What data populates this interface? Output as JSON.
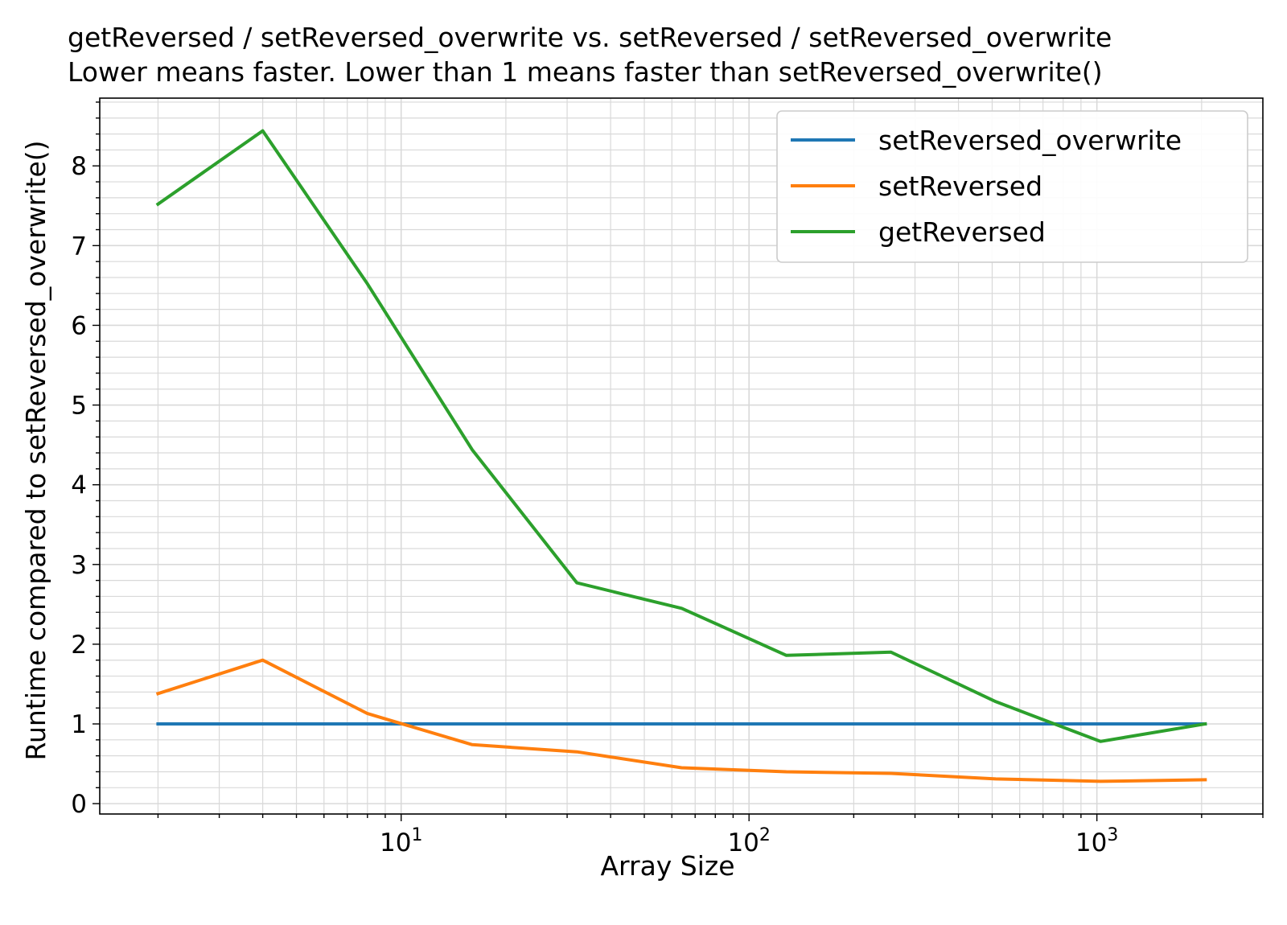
{
  "chart_data": {
    "type": "line",
    "title": "getReversed / setReversed_overwrite vs. setReversed / setReversed_overwrite",
    "subtitle": "Lower means faster. Lower than 1 means faster than setReversed_overwrite()",
    "xlabel": "Array Size",
    "ylabel": "Runtime compared to setReversed_overwrite()",
    "xscale": "log",
    "xlim": [
      1.36,
      3000
    ],
    "ylim": [
      -0.13,
      8.85
    ],
    "grid": "major and minor",
    "legend_position": "top-right",
    "x": [
      2,
      4,
      8,
      16,
      32,
      64,
      128,
      256,
      512,
      1024,
      2048
    ],
    "x_ticks": [
      {
        "value": 10,
        "base": "10",
        "exp": "1"
      },
      {
        "value": 100,
        "base": "10",
        "exp": "2"
      },
      {
        "value": 1000,
        "base": "10",
        "exp": "3"
      }
    ],
    "y_ticks": [
      0,
      1,
      2,
      3,
      4,
      5,
      6,
      7,
      8
    ],
    "series": [
      {
        "name": "setReversed_overwrite",
        "color": "#1f77b4",
        "values": [
          1,
          1,
          1,
          1,
          1,
          1,
          1,
          1,
          1,
          1,
          1
        ]
      },
      {
        "name": "setReversed",
        "color": "#ff7f0e",
        "values": [
          1.38,
          1.8,
          1.13,
          0.74,
          0.65,
          0.45,
          0.4,
          0.38,
          0.31,
          0.28,
          0.3
        ]
      },
      {
        "name": "getReversed",
        "color": "#2ca02c",
        "values": [
          7.52,
          8.44,
          6.52,
          4.44,
          2.77,
          2.45,
          1.86,
          1.9,
          1.28,
          0.78,
          1.0
        ]
      }
    ]
  }
}
